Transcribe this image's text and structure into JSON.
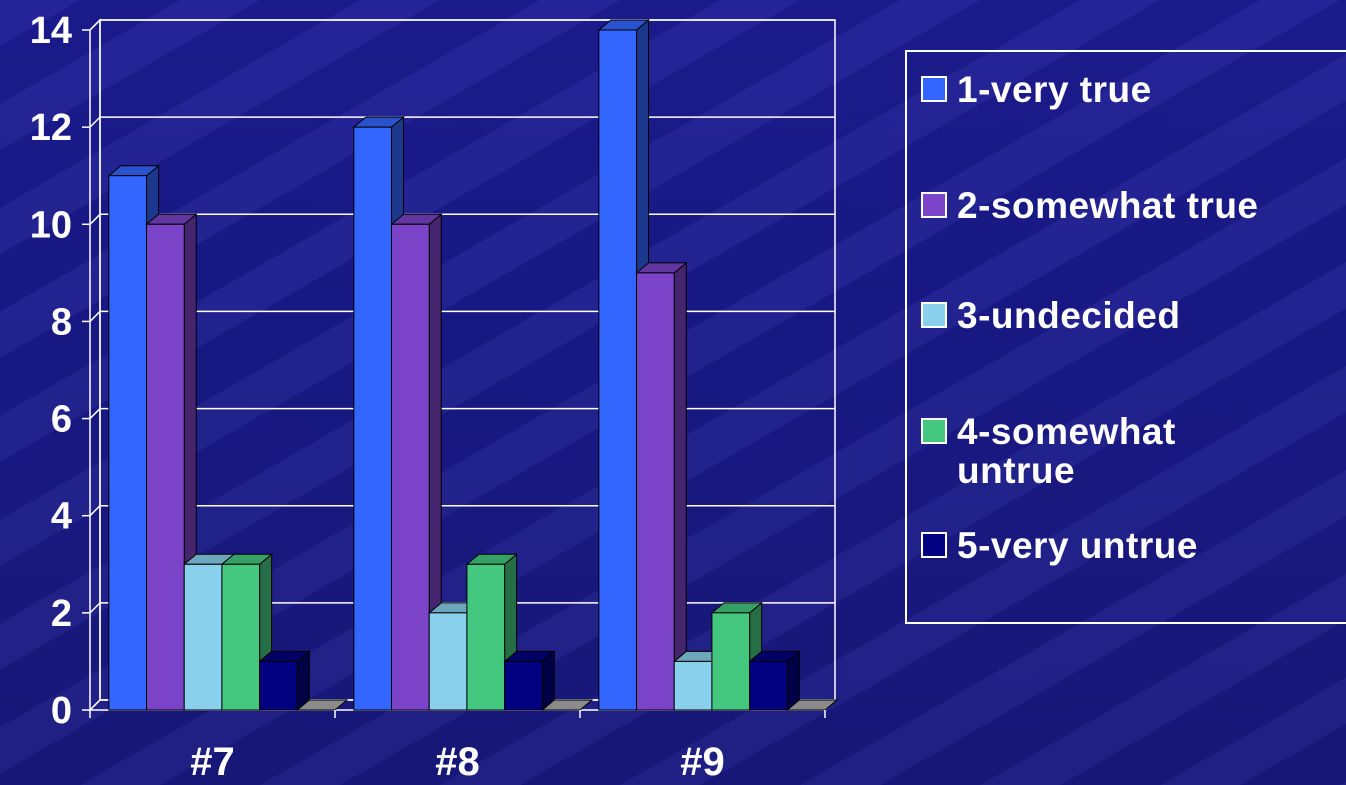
{
  "chart_data": {
    "type": "bar",
    "categories": [
      "#7",
      "#8",
      "#9"
    ],
    "series": [
      {
        "name": "1-very true",
        "values": [
          11,
          12,
          14
        ],
        "color": "#3366ff"
      },
      {
        "name": "2-somewhat true",
        "values": [
          10,
          10,
          9
        ],
        "color": "#7b44c8"
      },
      {
        "name": "3-undecided",
        "values": [
          3,
          2,
          1
        ],
        "color": "#88d0ec"
      },
      {
        "name": "4-somewhat untrue",
        "values": [
          3,
          3,
          2
        ],
        "color": "#44c880"
      },
      {
        "name": "5-very untrue",
        "values": [
          1,
          1,
          1
        ],
        "color": "#000080"
      }
    ],
    "ylim": [
      0,
      14
    ],
    "yticks": [
      "0",
      "2",
      "4",
      "6",
      "8",
      "10",
      "12",
      "14"
    ],
    "grid": true,
    "legend_position": "right",
    "legend_lines": [
      [
        "1-very true"
      ],
      [
        "2-somewhat true"
      ],
      [
        "3-undecided"
      ],
      [
        "4-somewhat",
        "untrue"
      ],
      [
        "5-very untrue"
      ]
    ]
  }
}
